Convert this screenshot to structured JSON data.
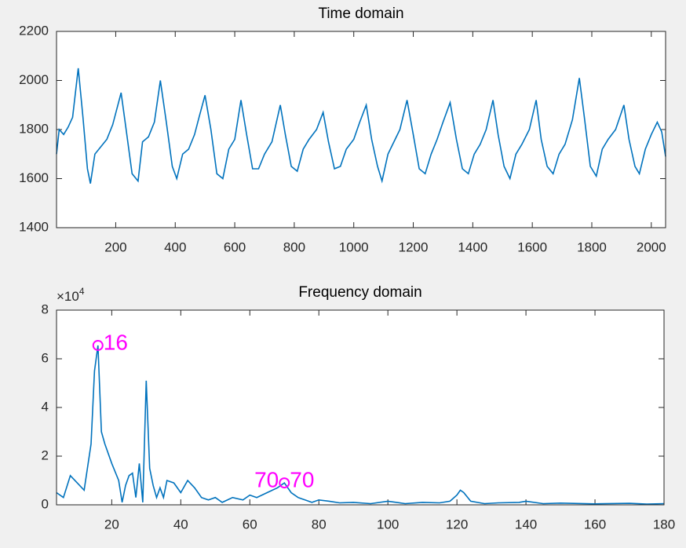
{
  "chart_data": [
    {
      "type": "line",
      "title": "Time domain",
      "color": "#0072bd",
      "xlim": [
        1,
        2048
      ],
      "xticks": [
        200,
        400,
        600,
        800,
        1000,
        1200,
        1400,
        1600,
        1800,
        2000
      ],
      "ylim": [
        1400,
        2200
      ],
      "yticks": [
        1400,
        1600,
        1800,
        2000,
        2200
      ],
      "x": [
        1,
        10,
        25,
        40,
        55,
        74,
        90,
        105,
        115,
        130,
        150,
        170,
        190,
        218,
        235,
        255,
        275,
        290,
        310,
        330,
        350,
        370,
        390,
        405,
        425,
        445,
        465,
        480,
        500,
        520,
        540,
        560,
        580,
        600,
        621,
        640,
        660,
        680,
        700,
        725,
        753,
        770,
        790,
        810,
        830,
        850,
        875,
        897,
        915,
        935,
        955,
        975,
        1000,
        1020,
        1042,
        1060,
        1080,
        1095,
        1115,
        1135,
        1155,
        1179,
        1200,
        1220,
        1240,
        1260,
        1280,
        1300,
        1324,
        1345,
        1365,
        1385,
        1405,
        1425,
        1445,
        1468,
        1485,
        1505,
        1525,
        1545,
        1565,
        1590,
        1613,
        1630,
        1650,
        1670,
        1690,
        1710,
        1735,
        1758,
        1775,
        1795,
        1815,
        1835,
        1855,
        1880,
        1908,
        1925,
        1945,
        1960,
        1980,
        2000,
        2020,
        2035,
        2048
      ],
      "values": [
        1700,
        1800,
        1780,
        1810,
        1850,
        2050,
        1850,
        1640,
        1580,
        1700,
        1730,
        1760,
        1820,
        1950,
        1800,
        1620,
        1590,
        1750,
        1770,
        1830,
        2000,
        1830,
        1650,
        1600,
        1700,
        1720,
        1780,
        1850,
        1940,
        1800,
        1620,
        1600,
        1720,
        1760,
        1920,
        1780,
        1640,
        1640,
        1700,
        1750,
        1900,
        1780,
        1650,
        1630,
        1720,
        1760,
        1800,
        1870,
        1750,
        1640,
        1650,
        1720,
        1760,
        1830,
        1900,
        1760,
        1650,
        1590,
        1700,
        1750,
        1800,
        1920,
        1780,
        1640,
        1620,
        1700,
        1760,
        1830,
        1910,
        1760,
        1640,
        1620,
        1700,
        1740,
        1800,
        1920,
        1780,
        1650,
        1600,
        1700,
        1740,
        1800,
        1920,
        1760,
        1650,
        1620,
        1700,
        1740,
        1840,
        2010,
        1850,
        1650,
        1610,
        1720,
        1760,
        1800,
        1900,
        1760,
        1650,
        1620,
        1720,
        1780,
        1830,
        1790,
        1690
      ]
    },
    {
      "type": "line",
      "title": "Frequency domain",
      "color": "#0072bd",
      "xlim": [
        4,
        180
      ],
      "xticks": [
        20,
        40,
        60,
        80,
        100,
        120,
        140,
        160,
        180
      ],
      "ylim": [
        0,
        80000
      ],
      "yticks": [
        {
          "value": 0,
          "label": "0"
        },
        {
          "value": 20000,
          "label": "2"
        },
        {
          "value": 40000,
          "label": "4"
        },
        {
          "value": 60000,
          "label": "6"
        },
        {
          "value": 80000,
          "label": "8"
        }
      ],
      "y_multiplier": {
        "base": "×10",
        "exponent": "4"
      },
      "x": [
        4,
        6,
        8,
        10,
        12,
        14,
        15,
        16,
        17,
        18,
        20,
        22,
        23,
        24,
        25,
        26,
        27,
        28,
        29,
        30,
        31,
        32,
        33,
        34,
        35,
        36,
        38,
        40,
        42,
        44,
        46,
        48,
        50,
        52,
        55,
        58,
        60,
        62,
        65,
        68,
        70,
        72,
        74,
        76,
        78,
        80,
        83,
        86,
        90,
        95,
        100,
        105,
        110,
        115,
        118,
        120,
        121,
        122,
        124,
        128,
        132,
        138,
        140,
        145,
        150,
        160,
        170,
        175,
        180
      ],
      "values": [
        5000,
        3000,
        12000,
        9000,
        6000,
        25000,
        55000,
        65500,
        30000,
        25000,
        17000,
        10000,
        1000,
        8000,
        12000,
        13000,
        3000,
        17000,
        1000,
        51000,
        15000,
        8000,
        3000,
        7000,
        3000,
        10000,
        9000,
        5000,
        10000,
        7000,
        3000,
        2000,
        3000,
        1000,
        3000,
        2000,
        4000,
        3000,
        5000,
        7000,
        9000,
        5000,
        3000,
        2000,
        1000,
        2000,
        1500,
        800,
        1000,
        500,
        1500,
        500,
        1000,
        800,
        1500,
        4000,
        6000,
        5000,
        1500,
        500,
        800,
        1000,
        1500,
        500,
        700,
        400,
        600,
        300,
        500
      ],
      "annotations": [
        {
          "x": 16,
          "y": 65500,
          "labels": [
            "16"
          ],
          "color": "#ff00ff"
        },
        {
          "x": 70,
          "y": 9000,
          "labels": [
            "70",
            "70"
          ],
          "color": "#ff00ff"
        }
      ]
    }
  ]
}
